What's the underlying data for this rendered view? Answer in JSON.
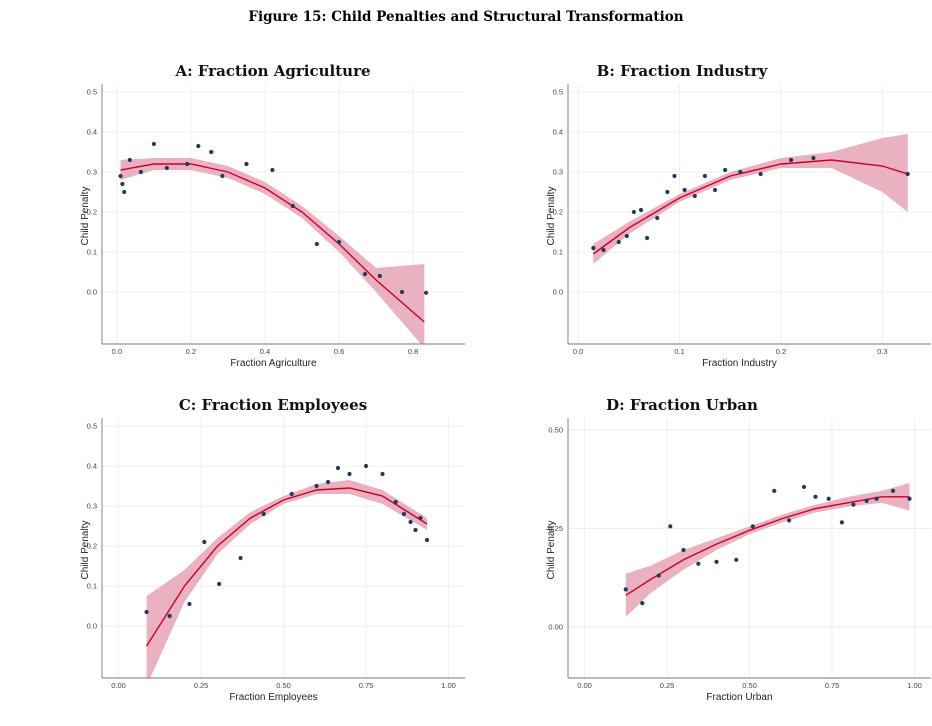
{
  "figure_title": "Figure 15: Child Penalties and Structural Transformation",
  "style": {
    "band_color": "#e8a9b9",
    "line_color": "#c8002e",
    "point_color": "#1f3b5e"
  },
  "chart_data": [
    {
      "type": "scatter",
      "title": "A: Fraction Agriculture",
      "xlabel": "Fraction Agriculture",
      "ylabel": "Child Penalty",
      "xlim": [
        -0.04,
        0.94
      ],
      "ylim": [
        -0.13,
        0.52
      ],
      "xticks": [
        0.0,
        0.2,
        0.4,
        0.6,
        0.8
      ],
      "xtick_labels": [
        "0.0",
        "0.2",
        "0.4",
        "0.6",
        "0.8"
      ],
      "yticks": [
        0.0,
        0.1,
        0.2,
        0.3,
        0.4,
        0.5
      ],
      "ytick_labels": [
        "0.0",
        "0.1",
        "0.2",
        "0.3",
        "0.4",
        "0.5"
      ],
      "points": [
        [
          0.01,
          0.29
        ],
        [
          0.015,
          0.27
        ],
        [
          0.02,
          0.25
        ],
        [
          0.035,
          0.33
        ],
        [
          0.065,
          0.3
        ],
        [
          0.1,
          0.37
        ],
        [
          0.135,
          0.31
        ],
        [
          0.19,
          0.32
        ],
        [
          0.22,
          0.365
        ],
        [
          0.255,
          0.35
        ],
        [
          0.285,
          0.29
        ],
        [
          0.35,
          0.32
        ],
        [
          0.42,
          0.305
        ],
        [
          0.475,
          0.215
        ],
        [
          0.54,
          0.12
        ],
        [
          0.6,
          0.125
        ],
        [
          0.67,
          0.045
        ],
        [
          0.71,
          0.04
        ],
        [
          0.77,
          0.0
        ],
        [
          0.835,
          -0.002
        ]
      ],
      "fit": {
        "x": [
          0.01,
          0.1,
          0.2,
          0.3,
          0.4,
          0.5,
          0.6,
          0.7,
          0.83
        ],
        "y": [
          0.305,
          0.32,
          0.32,
          0.3,
          0.26,
          0.2,
          0.12,
          0.03,
          -0.075
        ]
      },
      "band": {
        "x": [
          0.01,
          0.1,
          0.2,
          0.3,
          0.4,
          0.5,
          0.6,
          0.7,
          0.83
        ],
        "lo": [
          0.28,
          0.305,
          0.305,
          0.285,
          0.245,
          0.185,
          0.1,
          0.0,
          -0.14
        ],
        "hi": [
          0.33,
          0.335,
          0.335,
          0.315,
          0.275,
          0.215,
          0.14,
          0.06,
          0.07
        ]
      }
    },
    {
      "type": "scatter",
      "title": "B: Fraction Industry",
      "xlabel": "Fraction Industry",
      "ylabel": "Child Penalty",
      "xlim": [
        -0.01,
        0.348
      ],
      "ylim": [
        -0.13,
        0.52
      ],
      "xticks": [
        0.0,
        0.1,
        0.2,
        0.3
      ],
      "xtick_labels": [
        "0.0",
        "0.1",
        "0.2",
        "0.3"
      ],
      "yticks": [
        0.0,
        0.1,
        0.2,
        0.3,
        0.4,
        0.5
      ],
      "ytick_labels": [
        "0.0",
        "0.1",
        "0.2",
        "0.3",
        "0.4",
        "0.5"
      ],
      "points": [
        [
          0.015,
          0.11
        ],
        [
          0.025,
          0.105
        ],
        [
          0.04,
          0.125
        ],
        [
          0.048,
          0.14
        ],
        [
          0.055,
          0.2
        ],
        [
          0.062,
          0.205
        ],
        [
          0.068,
          0.135
        ],
        [
          0.078,
          0.185
        ],
        [
          0.088,
          0.25
        ],
        [
          0.095,
          0.29
        ],
        [
          0.105,
          0.255
        ],
        [
          0.115,
          0.24
        ],
        [
          0.125,
          0.29
        ],
        [
          0.135,
          0.255
        ],
        [
          0.145,
          0.305
        ],
        [
          0.16,
          0.3
        ],
        [
          0.18,
          0.295
        ],
        [
          0.21,
          0.33
        ],
        [
          0.232,
          0.335
        ],
        [
          0.325,
          0.295
        ]
      ],
      "fit": {
        "x": [
          0.015,
          0.05,
          0.1,
          0.15,
          0.2,
          0.25,
          0.3,
          0.325
        ],
        "y": [
          0.095,
          0.16,
          0.235,
          0.29,
          0.32,
          0.33,
          0.315,
          0.295
        ]
      },
      "band": {
        "x": [
          0.015,
          0.05,
          0.1,
          0.15,
          0.2,
          0.25,
          0.3,
          0.325
        ],
        "lo": [
          0.07,
          0.145,
          0.225,
          0.28,
          0.31,
          0.31,
          0.25,
          0.2
        ],
        "hi": [
          0.12,
          0.175,
          0.245,
          0.3,
          0.335,
          0.35,
          0.385,
          0.395
        ]
      }
    },
    {
      "type": "scatter",
      "title": "C: Fraction Employees",
      "xlabel": "Fraction Employees",
      "ylabel": "Child Penalty",
      "xlim": [
        -0.05,
        1.05
      ],
      "ylim": [
        -0.13,
        0.52
      ],
      "xticks": [
        0.0,
        0.25,
        0.5,
        0.75,
        1.0
      ],
      "xtick_labels": [
        "0.00",
        "0.25",
        "0.50",
        "0.75",
        "1.00"
      ],
      "yticks": [
        0.0,
        0.1,
        0.2,
        0.3,
        0.4,
        0.5
      ],
      "ytick_labels": [
        "0.0",
        "0.1",
        "0.2",
        "0.3",
        "0.4",
        "0.5"
      ],
      "points": [
        [
          0.085,
          0.035
        ],
        [
          0.155,
          0.025
        ],
        [
          0.215,
          0.055
        ],
        [
          0.26,
          0.21
        ],
        [
          0.305,
          0.105
        ],
        [
          0.37,
          0.17
        ],
        [
          0.44,
          0.28
        ],
        [
          0.525,
          0.33
        ],
        [
          0.6,
          0.35
        ],
        [
          0.635,
          0.36
        ],
        [
          0.665,
          0.395
        ],
        [
          0.7,
          0.38
        ],
        [
          0.75,
          0.4
        ],
        [
          0.8,
          0.38
        ],
        [
          0.84,
          0.31
        ],
        [
          0.865,
          0.28
        ],
        [
          0.885,
          0.26
        ],
        [
          0.9,
          0.24
        ],
        [
          0.915,
          0.27
        ],
        [
          0.935,
          0.215
        ]
      ],
      "fit": {
        "x": [
          0.085,
          0.2,
          0.3,
          0.4,
          0.5,
          0.6,
          0.7,
          0.8,
          0.935
        ],
        "y": [
          -0.05,
          0.1,
          0.2,
          0.27,
          0.315,
          0.34,
          0.345,
          0.325,
          0.255
        ]
      },
      "band": {
        "x": [
          0.085,
          0.2,
          0.3,
          0.4,
          0.5,
          0.6,
          0.7,
          0.8,
          0.935
        ],
        "lo": [
          -0.15,
          0.06,
          0.18,
          0.255,
          0.305,
          0.33,
          0.33,
          0.305,
          0.24
        ],
        "hi": [
          0.075,
          0.14,
          0.22,
          0.285,
          0.325,
          0.355,
          0.365,
          0.34,
          0.27
        ]
      }
    },
    {
      "type": "scatter",
      "title": "D: Fraction Urban",
      "xlabel": "Fraction Urban",
      "ylabel": "Child Penalty",
      "xlim": [
        -0.05,
        1.05
      ],
      "ylim": [
        -0.13,
        0.53
      ],
      "xticks": [
        0.0,
        0.25,
        0.5,
        0.75,
        1.0
      ],
      "xtick_labels": [
        "0.00",
        "0.25",
        "0.50",
        "0.75",
        "1.00"
      ],
      "yticks": [
        0.0,
        0.25,
        0.5
      ],
      "ytick_labels": [
        "0.00",
        "0.25",
        "0.50"
      ],
      "points": [
        [
          0.125,
          0.095
        ],
        [
          0.175,
          0.06
        ],
        [
          0.225,
          0.13
        ],
        [
          0.26,
          0.255
        ],
        [
          0.3,
          0.195
        ],
        [
          0.345,
          0.16
        ],
        [
          0.4,
          0.165
        ],
        [
          0.46,
          0.17
        ],
        [
          0.51,
          0.255
        ],
        [
          0.575,
          0.345
        ],
        [
          0.62,
          0.27
        ],
        [
          0.665,
          0.355
        ],
        [
          0.7,
          0.33
        ],
        [
          0.74,
          0.325
        ],
        [
          0.78,
          0.265
        ],
        [
          0.815,
          0.31
        ],
        [
          0.855,
          0.32
        ],
        [
          0.885,
          0.325
        ],
        [
          0.935,
          0.345
        ],
        [
          0.985,
          0.325
        ]
      ],
      "fit": {
        "x": [
          0.125,
          0.2,
          0.3,
          0.4,
          0.5,
          0.6,
          0.7,
          0.8,
          0.9,
          0.985
        ],
        "y": [
          0.08,
          0.12,
          0.17,
          0.21,
          0.245,
          0.275,
          0.3,
          0.315,
          0.33,
          0.33
        ]
      },
      "band": {
        "x": [
          0.125,
          0.2,
          0.3,
          0.4,
          0.5,
          0.6,
          0.7,
          0.8,
          0.9,
          0.985
        ],
        "lo": [
          0.025,
          0.085,
          0.145,
          0.195,
          0.235,
          0.265,
          0.29,
          0.305,
          0.315,
          0.295
        ],
        "hi": [
          0.135,
          0.155,
          0.195,
          0.225,
          0.255,
          0.285,
          0.31,
          0.33,
          0.345,
          0.365
        ]
      }
    }
  ]
}
